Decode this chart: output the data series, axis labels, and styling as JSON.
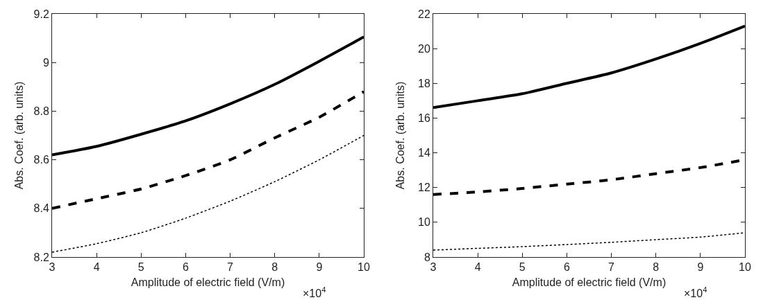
{
  "chart_data": [
    {
      "type": "line",
      "xlabel": "Amplitude of electric field (V/m)",
      "ylabel": "Abs. Coef. (arb. units)",
      "annotations": [
        "×10$^{4}$"
      ],
      "x": [
        3,
        4,
        5,
        6,
        7,
        8,
        9,
        10
      ],
      "xlim": [
        3,
        10
      ],
      "xticks": [
        3,
        4,
        5,
        6,
        7,
        8,
        9,
        10
      ],
      "ylim": [
        8.2,
        9.2
      ],
      "yticks": [
        8.2,
        8.4,
        8.6,
        8.8,
        9,
        9.2
      ],
      "grid": false,
      "legend": false,
      "series": [
        {
          "color": "#000000",
          "line_style": "solid",
          "values": [
            8.62,
            8.655,
            8.705,
            8.76,
            8.83,
            8.91,
            9.005,
            9.105
          ]
        },
        {
          "color": "#000000",
          "line_style": "dashed",
          "values": [
            8.4,
            8.44,
            8.48,
            8.535,
            8.6,
            8.69,
            8.775,
            8.88
          ]
        },
        {
          "color": "#000000",
          "line_style": "dotted",
          "values": [
            8.22,
            8.255,
            8.3,
            8.36,
            8.43,
            8.51,
            8.6,
            8.7
          ]
        }
      ]
    },
    {
      "type": "line",
      "xlabel": "Amplitude of electric field (V/m)",
      "ylabel": "Abs. Coef. (arb. units)",
      "annotations": [
        "×10$^{4}$"
      ],
      "x": [
        3,
        4,
        5,
        6,
        7,
        8,
        9,
        10
      ],
      "xlim": [
        3,
        10
      ],
      "xticks": [
        3,
        4,
        5,
        6,
        7,
        8,
        9,
        10
      ],
      "ylim": [
        8,
        22
      ],
      "yticks": [
        8,
        10,
        12,
        14,
        16,
        18,
        20,
        22
      ],
      "grid": false,
      "legend": false,
      "series": [
        {
          "color": "#000000",
          "line_style": "solid",
          "values": [
            16.6,
            17,
            17.4,
            18,
            18.6,
            19.4,
            20.3,
            21.3
          ]
        },
        {
          "color": "#000000",
          "line_style": "dashed",
          "values": [
            11.6,
            11.75,
            11.95,
            12.2,
            12.45,
            12.8,
            13.15,
            13.6
          ]
        },
        {
          "color": "#000000",
          "line_style": "dotted",
          "values": [
            8.4,
            8.5,
            8.6,
            8.72,
            8.85,
            9,
            9.15,
            9.4
          ]
        }
      ]
    }
  ]
}
